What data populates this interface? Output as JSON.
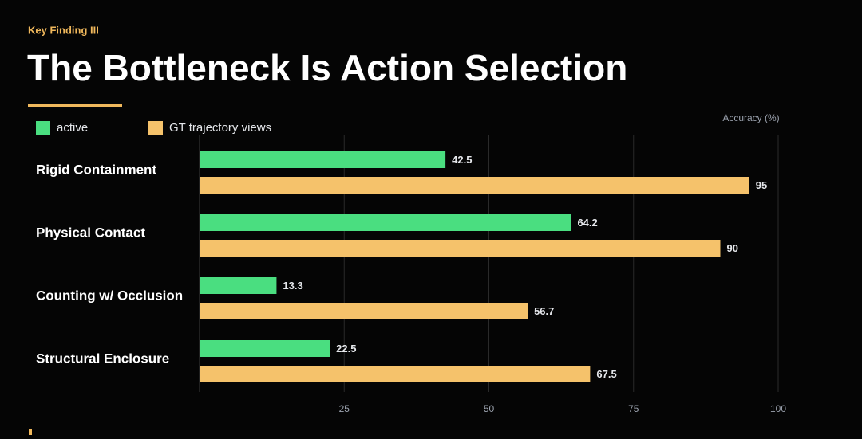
{
  "chart_data": {
    "type": "bar",
    "orientation": "horizontal",
    "eyebrow": "Key Finding III",
    "title": "The Bottleneck Is Action Selection",
    "x_label": "Accuracy (%)",
    "categories": [
      "Rigid Containment",
      "Physical Contact",
      "Counting w/ Occlusion",
      "Structural Enclosure"
    ],
    "series": [
      {
        "name": "active",
        "color": "#4ade80",
        "values": [
          42.5,
          64.2,
          13.3,
          22.5
        ]
      },
      {
        "name": "GT trajectory  views",
        "color": "#f5c26b",
        "values": [
          95,
          90,
          56.7,
          67.5
        ]
      }
    ],
    "xlim": [
      0,
      100
    ],
    "xticks": [
      25,
      50,
      75,
      100
    ],
    "grid": true
  }
}
